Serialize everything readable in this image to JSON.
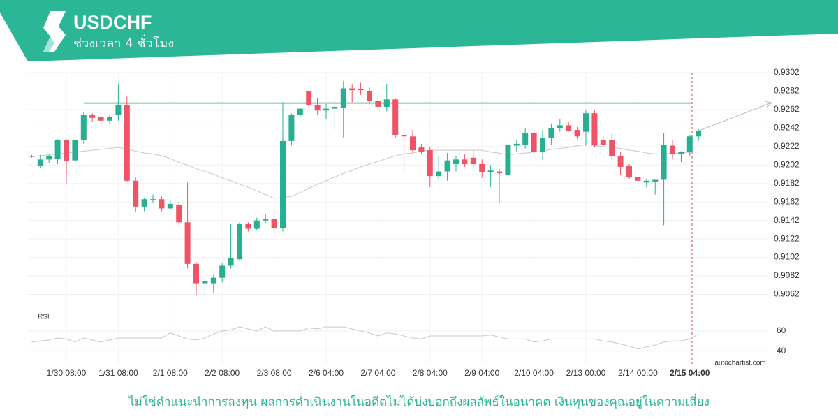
{
  "chart_data": {
    "type": "candlestick",
    "title": "USDCHF",
    "subtitle": "ช่วงเวลา 4 ชั่วโมง",
    "up_color": "#26b091",
    "down_color": "#ef5365",
    "grid": true,
    "categories": [
      null,
      null,
      null,
      null,
      "1/30 08:00",
      null,
      null,
      null,
      null,
      null,
      "1/31 08:00",
      null,
      null,
      null,
      null,
      null,
      "2/1 08:00",
      null,
      null,
      null,
      null,
      null,
      "2/2 08:00",
      null,
      null,
      null,
      null,
      null,
      "2/3 08:00",
      null,
      null,
      null,
      null,
      null,
      "2/6 04:00",
      null,
      null,
      null,
      null,
      null,
      "2/7 04:00",
      null,
      null,
      null,
      null,
      null,
      "2/8 04:00",
      null,
      null,
      null,
      null,
      null,
      "2/9 04:00",
      null,
      null,
      null,
      null,
      null,
      "2/10 04:00",
      null,
      null,
      null,
      null,
      null,
      "2/13 00:00",
      null,
      null,
      null,
      null,
      null,
      "2/14 00:00",
      null,
      null,
      null,
      null,
      null,
      "2/15 04:00",
      null
    ],
    "open": [
      0.9212,
      0.9201,
      0.9208,
      0.9209,
      0.9229,
      0.9207,
      0.9229,
      0.9256,
      0.9254,
      0.925,
      0.9256,
      0.9267,
      0.9185,
      0.9157,
      0.9164,
      0.9165,
      0.9155,
      0.9159,
      0.914,
      0.9095,
      0.9074,
      0.9074,
      0.908,
      0.9093,
      0.91,
      0.9138,
      0.9133,
      0.9142,
      0.9144,
      0.9134,
      0.9228,
      0.9256,
      0.9282,
      0.9267,
      0.9261,
      0.9263,
      0.9264,
      0.9285,
      0.9284,
      0.9282,
      0.9271,
      0.9265,
      0.9273,
      0.9234,
      0.9233,
      0.9221,
      0.9218,
      0.919,
      0.9195,
      0.9203,
      0.9208,
      0.921,
      0.9203,
      0.9194,
      0.9195,
      0.9191,
      0.9223,
      0.9224,
      0.9237,
      0.9216,
      0.9231,
      0.9242,
      0.9245,
      0.924,
      0.9238,
      0.9258,
      0.9229,
      0.9229,
      0.9212,
      0.9201,
      0.9189,
      0.9183,
      0.9184,
      0.9186,
      0.9223,
      0.9214,
      0.9216,
      0.9233
    ],
    "high": [
      0.9213,
      0.9213,
      0.9213,
      0.923,
      0.923,
      0.9231,
      0.9259,
      0.9258,
      0.9257,
      0.9257,
      0.9289,
      0.9276,
      0.9189,
      0.9166,
      0.917,
      0.9168,
      0.9163,
      0.9162,
      0.9183,
      0.9097,
      0.908,
      0.9083,
      0.9096,
      0.9138,
      0.914,
      0.914,
      0.9145,
      0.9149,
      0.9155,
      0.927,
      0.9258,
      0.9264,
      0.9283,
      0.9275,
      0.9268,
      0.9275,
      0.9293,
      0.9289,
      0.9291,
      0.9286,
      0.9276,
      0.9289,
      0.9274,
      0.924,
      0.924,
      0.9225,
      0.9222,
      0.9212,
      0.9215,
      0.9212,
      0.9214,
      0.9218,
      0.9208,
      0.9202,
      0.9198,
      0.9226,
      0.9229,
      0.9242,
      0.924,
      0.924,
      0.9247,
      0.9252,
      0.9249,
      0.9243,
      0.9262,
      0.9261,
      0.9233,
      0.9236,
      0.9216,
      0.9203,
      0.919,
      0.9187,
      0.9186,
      0.9237,
      0.9229,
      0.9217,
      0.9234,
      0.9241
    ],
    "low": [
      0.921,
      0.9199,
      0.9204,
      0.9203,
      0.9182,
      0.9205,
      0.9225,
      0.9249,
      0.9243,
      0.9247,
      0.925,
      0.9184,
      0.9151,
      0.9152,
      0.9161,
      0.9152,
      0.9153,
      0.9137,
      0.909,
      0.9061,
      0.9062,
      0.9064,
      0.9075,
      0.909,
      0.9098,
      0.913,
      0.9131,
      0.9139,
      0.9126,
      0.913,
      0.9223,
      0.9254,
      0.9265,
      0.9256,
      0.9252,
      0.924,
      0.9232,
      0.927,
      0.9278,
      0.9268,
      0.9262,
      0.926,
      0.9232,
      0.9194,
      0.9215,
      0.9214,
      0.9178,
      0.9186,
      0.9185,
      0.9195,
      0.92,
      0.9198,
      0.9188,
      0.9178,
      0.9161,
      0.9189,
      0.9216,
      0.922,
      0.921,
      0.9208,
      0.9224,
      0.9238,
      0.9238,
      0.923,
      0.9223,
      0.9221,
      0.9222,
      0.9208,
      0.9191,
      0.9187,
      0.918,
      0.9178,
      0.917,
      0.9137,
      0.9208,
      0.9205,
      0.9212,
      0.9228
    ],
    "close": [
      0.9211,
      0.9208,
      0.9212,
      0.9229,
      0.9206,
      0.9229,
      0.9256,
      0.9253,
      0.925,
      0.9254,
      0.9267,
      0.9185,
      0.9157,
      0.9165,
      0.9165,
      0.9155,
      0.916,
      0.914,
      0.9095,
      0.9074,
      0.9076,
      0.908,
      0.9093,
      0.9101,
      0.9138,
      0.9133,
      0.9142,
      0.9144,
      0.9134,
      0.9228,
      0.9256,
      0.9263,
      0.9267,
      0.9261,
      0.9263,
      0.9265,
      0.9285,
      0.9283,
      0.9283,
      0.9271,
      0.9265,
      0.9273,
      0.9234,
      0.9233,
      0.9218,
      0.9216,
      0.919,
      0.9195,
      0.9207,
      0.9208,
      0.9203,
      0.9203,
      0.9194,
      0.9196,
      0.9193,
      0.9224,
      0.9225,
      0.9237,
      0.9216,
      0.9231,
      0.9242,
      0.9245,
      0.9239,
      0.9233,
      0.9258,
      0.9224,
      0.9224,
      0.9212,
      0.92,
      0.9189,
      0.9185,
      0.9185,
      0.9186,
      0.9224,
      0.9214,
      0.9216,
      0.9233,
      0.9239
    ],
    "moving_average": {
      "color": "#c8c8c8",
      "values": [
        0.9211,
        0.9212,
        0.9213,
        0.9214,
        0.9215,
        0.9216,
        0.9217,
        0.9218,
        0.9219,
        0.922,
        0.9221,
        0.9219,
        0.9217,
        0.9215,
        0.9214,
        0.9212,
        0.9209,
        0.9205,
        0.9202,
        0.9198,
        0.9195,
        0.9192,
        0.9188,
        0.9185,
        0.9181,
        0.9178,
        0.9174,
        0.917,
        0.9166,
        0.9167,
        0.9168,
        0.9172,
        0.9177,
        0.9181,
        0.9185,
        0.9189,
        0.9193,
        0.9196,
        0.92,
        0.9203,
        0.9206,
        0.9209,
        0.9212,
        0.9214,
        0.9215,
        0.9217,
        0.9218,
        0.9218,
        0.9218,
        0.9218,
        0.9218,
        0.9218,
        0.9218,
        0.9216,
        0.9215,
        0.9213,
        0.9214,
        0.9215,
        0.9216,
        0.9217,
        0.9219,
        0.922,
        0.9221,
        0.9223,
        0.9224,
        0.9223,
        0.9222,
        0.9221,
        0.922,
        0.9218,
        0.9217,
        0.9215,
        0.9214,
        0.9214,
        0.9215,
        0.9215,
        0.9216,
        0.9216
      ]
    },
    "resistance": {
      "value": 0.9269,
      "color": "#7cc4a0"
    },
    "ylim": [
      0.9048,
      0.9302
    ],
    "yticks": [
      0.9302,
      0.9282,
      0.9262,
      0.9242,
      0.9222,
      0.9202,
      0.9182,
      0.9162,
      0.9142,
      0.9122,
      0.9102,
      0.9082,
      0.9062
    ],
    "rsi": {
      "label": "RSI",
      "color": "#c8c8c8",
      "values": [
        49,
        50,
        51,
        53,
        52,
        49,
        53,
        51,
        49,
        51,
        53,
        53,
        53,
        53,
        53,
        53,
        58,
        55,
        52,
        51,
        53,
        57,
        60,
        61,
        64,
        62,
        60,
        64,
        60,
        60,
        60,
        60,
        63,
        62,
        64,
        64,
        64,
        62,
        60,
        58,
        55,
        58,
        57,
        55,
        53,
        52,
        55,
        55,
        55,
        55,
        55,
        55,
        55,
        56,
        54,
        52,
        52,
        52,
        49,
        50,
        52,
        52,
        52,
        52,
        52,
        52,
        50,
        49,
        47,
        45,
        42,
        44,
        46,
        49,
        50,
        50,
        52,
        57
      ],
      "ylim": [
        28,
        80
      ],
      "yticks": [
        60,
        40
      ]
    },
    "watermark": "autochartist.com",
    "disclaimer": "ไม่ใช่คำแนะนำการลงทุน ผลการดำเนินงานในอดีตไม่ได้บ่งบอกถึงผลลัพธ์ในอนาคต เงินทุนของคุณอยู่ในความเสี่ยง"
  }
}
